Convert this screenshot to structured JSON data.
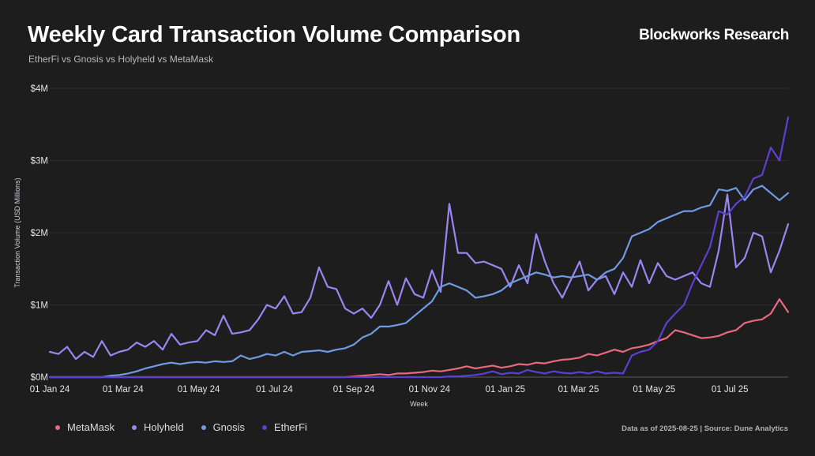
{
  "header": {
    "title": "Weekly Card Transaction Volume Comparison",
    "subtitle": "EtherFi vs Gnosis vs Holyheld vs MetaMask",
    "brand": "Blockworks Research"
  },
  "footer": {
    "source": "Data as of 2025-08-25 | Source: Dune Analytics"
  },
  "chart_data": {
    "type": "line",
    "title": "Weekly Card Transaction Volume Comparison",
    "subtitle": "EtherFi vs Gnosis vs Holyheld vs MetaMask",
    "xlabel": "Week",
    "ylabel": "Transaction Volume (USD Millions)",
    "ylim": [
      0,
      4
    ],
    "y_ticks": [
      0,
      1,
      2,
      3,
      4
    ],
    "y_tick_labels": [
      "$0M",
      "$1M",
      "$2M",
      "$3M",
      "$4M"
    ],
    "x_ticks": [
      0,
      8.43,
      17.14,
      25.86,
      35,
      43.71,
      52.43,
      60.86,
      69.57,
      78.29
    ],
    "x_tick_labels": [
      "01 Jan 24",
      "01 Mar 24",
      "01 May 24",
      "01 Jul 24",
      "01 Sep 24",
      "01 Nov 24",
      "01 Jan 25",
      "01 Mar 25",
      "01 May 25",
      "01 Jul 25"
    ],
    "x_range": [
      0,
      85
    ],
    "grid": true,
    "legend_position": "bottom-left",
    "series": [
      {
        "name": "MetaMask",
        "color": "#e8697e",
        "values": [
          0,
          0,
          0,
          0,
          0,
          0,
          0,
          0,
          0,
          0,
          0,
          0,
          0,
          0,
          0,
          0,
          0,
          0,
          0,
          0,
          0,
          0,
          0,
          0,
          0,
          0,
          0,
          0,
          0,
          0,
          0,
          0,
          0,
          0,
          0,
          0.01,
          0.02,
          0.03,
          0.04,
          0.03,
          0.05,
          0.05,
          0.06,
          0.07,
          0.09,
          0.08,
          0.1,
          0.12,
          0.15,
          0.12,
          0.14,
          0.16,
          0.13,
          0.15,
          0.18,
          0.17,
          0.2,
          0.19,
          0.22,
          0.24,
          0.25,
          0.27,
          0.32,
          0.3,
          0.34,
          0.38,
          0.35,
          0.4,
          0.42,
          0.45,
          0.5,
          0.54,
          0.65,
          0.62,
          0.58,
          0.54,
          0.55,
          0.57,
          0.62,
          0.65,
          0.75,
          0.78,
          0.8,
          0.88,
          1.08,
          0.9
        ]
      },
      {
        "name": "Holyheld",
        "color": "#9a86f0",
        "values": [
          0.35,
          0.32,
          0.42,
          0.25,
          0.35,
          0.28,
          0.5,
          0.3,
          0.35,
          0.38,
          0.48,
          0.42,
          0.5,
          0.38,
          0.6,
          0.45,
          0.48,
          0.5,
          0.65,
          0.58,
          0.85,
          0.6,
          0.62,
          0.65,
          0.8,
          1.0,
          0.95,
          1.12,
          0.88,
          0.9,
          1.1,
          1.52,
          1.25,
          1.22,
          0.95,
          0.88,
          0.95,
          0.82,
          1.0,
          1.33,
          1.0,
          1.37,
          1.15,
          1.1,
          1.48,
          1.18,
          2.4,
          1.72,
          1.72,
          1.58,
          1.6,
          1.55,
          1.5,
          1.25,
          1.55,
          1.3,
          1.98,
          1.6,
          1.3,
          1.1,
          1.35,
          1.6,
          1.2,
          1.35,
          1.4,
          1.15,
          1.45,
          1.25,
          1.62,
          1.3,
          1.58,
          1.4,
          1.35,
          1.4,
          1.45,
          1.3,
          1.25,
          1.75,
          2.53,
          1.52,
          1.65,
          2.0,
          1.95,
          1.45,
          1.75,
          2.12
        ]
      },
      {
        "name": "Gnosis",
        "color": "#6f9be3",
        "values": [
          0,
          0,
          0,
          0,
          0,
          0,
          0,
          0.02,
          0.03,
          0.05,
          0.08,
          0.12,
          0.15,
          0.18,
          0.2,
          0.18,
          0.2,
          0.21,
          0.2,
          0.22,
          0.21,
          0.22,
          0.3,
          0.25,
          0.28,
          0.32,
          0.3,
          0.35,
          0.3,
          0.35,
          0.36,
          0.37,
          0.35,
          0.38,
          0.4,
          0.45,
          0.55,
          0.6,
          0.7,
          0.7,
          0.72,
          0.75,
          0.85,
          0.95,
          1.05,
          1.25,
          1.3,
          1.25,
          1.2,
          1.1,
          1.12,
          1.15,
          1.2,
          1.3,
          1.35,
          1.4,
          1.45,
          1.42,
          1.38,
          1.4,
          1.38,
          1.4,
          1.42,
          1.35,
          1.45,
          1.5,
          1.65,
          1.95,
          2.0,
          2.05,
          2.15,
          2.2,
          2.25,
          2.3,
          2.3,
          2.35,
          2.38,
          2.6,
          2.58,
          2.62,
          2.45,
          2.6,
          2.65,
          2.55,
          2.45,
          2.55
        ]
      },
      {
        "name": "EtherFi",
        "color": "#5d3fd3",
        "values": [
          0,
          0,
          0,
          0,
          0,
          0,
          0,
          0,
          0,
          0,
          0,
          0,
          0,
          0,
          0,
          0,
          0,
          0,
          0,
          0,
          0,
          0,
          0,
          0,
          0,
          0,
          0,
          0,
          0,
          0,
          0,
          0,
          0,
          0,
          0,
          0,
          0,
          0,
          0,
          0,
          0,
          0,
          0,
          0,
          0,
          0,
          0.01,
          0.01,
          0.02,
          0.03,
          0.05,
          0.08,
          0.04,
          0.06,
          0.05,
          0.1,
          0.07,
          0.05,
          0.08,
          0.06,
          0.05,
          0.07,
          0.05,
          0.08,
          0.05,
          0.06,
          0.05,
          0.3,
          0.35,
          0.38,
          0.5,
          0.75,
          0.88,
          1.0,
          1.3,
          1.55,
          1.8,
          2.3,
          2.25,
          2.4,
          2.5,
          2.75,
          2.8,
          3.18,
          3.0,
          3.6
        ]
      }
    ]
  }
}
